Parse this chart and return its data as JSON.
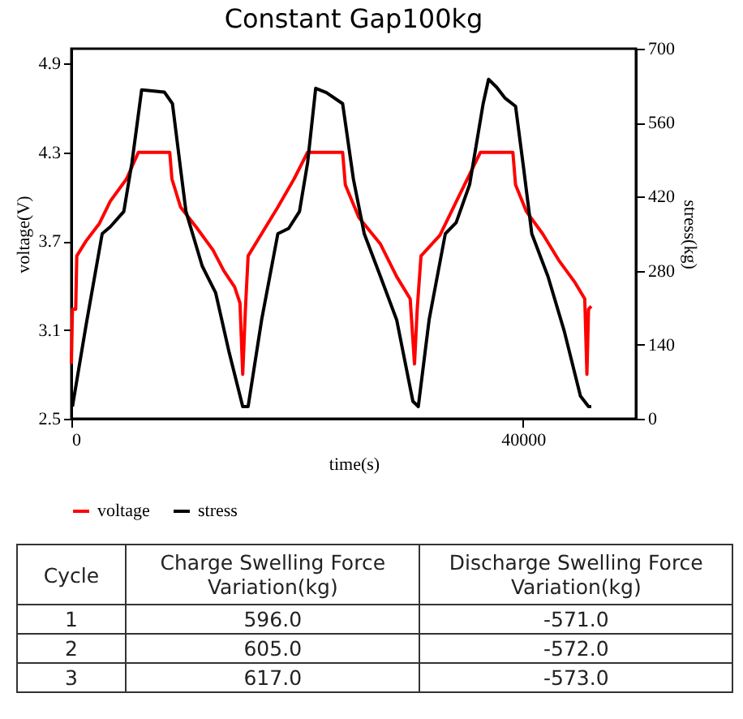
{
  "chart_data": [
    {
      "type": "line",
      "title": "Constant Gap100kg",
      "xlabel": "time(s)",
      "ylabel": "voltage(V)",
      "y2label": "stress(kg)",
      "xlim": [
        0,
        50000
      ],
      "xticks": [
        0,
        40000
      ],
      "ylim": [
        2.5,
        5.0
      ],
      "yticks": [
        2.5,
        3.1,
        3.7,
        4.3,
        4.9
      ],
      "y2lim": [
        0,
        700
      ],
      "y2ticks": [
        0,
        140,
        280,
        420,
        560,
        700
      ],
      "grid": false,
      "legend": "bottom",
      "series": [
        {
          "name": "voltage",
          "color": "#ff0000",
          "x": [
            0,
            96,
            383,
            479,
            1292,
            2489,
            3447,
            4883,
            5936,
            8712,
            8904,
            9670,
            11106,
            12542,
            13499,
            14457,
            14935,
            15175,
            15414,
            15653,
            16850,
            18286,
            19722,
            20919,
            24024,
            24263,
            25460,
            27375,
            28811,
            30007,
            30390,
            30630,
            30965,
            32640,
            34555,
            36230,
            39100,
            39340,
            40300,
            41734,
            43170,
            44606,
            45468,
            45659,
            45803,
            46042
          ],
          "values": [
            2.87,
            3.24,
            3.24,
            3.6,
            3.7,
            3.82,
            3.97,
            4.12,
            4.3,
            4.3,
            4.12,
            3.93,
            3.79,
            3.64,
            3.5,
            3.39,
            3.28,
            2.8,
            3.24,
            3.6,
            3.75,
            3.93,
            4.12,
            4.3,
            4.3,
            4.08,
            3.86,
            3.68,
            3.46,
            3.31,
            2.87,
            3.24,
            3.6,
            3.74,
            4.04,
            4.3,
            4.3,
            4.08,
            3.9,
            3.75,
            3.57,
            3.42,
            3.31,
            2.8,
            3.24,
            3.26
          ]
        },
        {
          "name": "stress",
          "color": "#000000",
          "axis": "y2",
          "x": [
            96,
            1292,
            2729,
            3447,
            4644,
            5361,
            6223,
            6797,
            8233,
            8952,
            9670,
            10148,
            11584,
            12781,
            13978,
            15175,
            15653,
            16850,
            18286,
            19244,
            20201,
            20919,
            21637,
            22588,
            24024,
            24980,
            25938,
            27375,
            28811,
            30246,
            30725,
            31682,
            33118,
            34076,
            35273,
            36469,
            36948,
            37666,
            38384,
            39340,
            40059,
            40777,
            42213,
            43649,
            45085,
            45803,
            46042
          ],
          "values": [
            23,
            176,
            350,
            363,
            392,
            484,
            622,
            621,
            618,
            596,
            473,
            392,
            289,
            238,
            125,
            23,
            23,
            187,
            350,
            360,
            392,
            484,
            625,
            617,
            596,
            453,
            350,
            269,
            187,
            33,
            23,
            187,
            350,
            371,
            443,
            596,
            642,
            627,
            607,
            591,
            473,
            350,
            269,
            166,
            43,
            23,
            23
          ]
        }
      ]
    },
    {
      "type": "other",
      "annotations": [
        "Cycle",
        "Charge Swelling Force Variation(kg)",
        "Discharge Swelling Force Variation(kg)",
        "1",
        "596.0",
        "-571.0",
        "2",
        "605.0",
        "-572.0",
        "3",
        "617.0",
        "-573.0"
      ]
    }
  ]
}
